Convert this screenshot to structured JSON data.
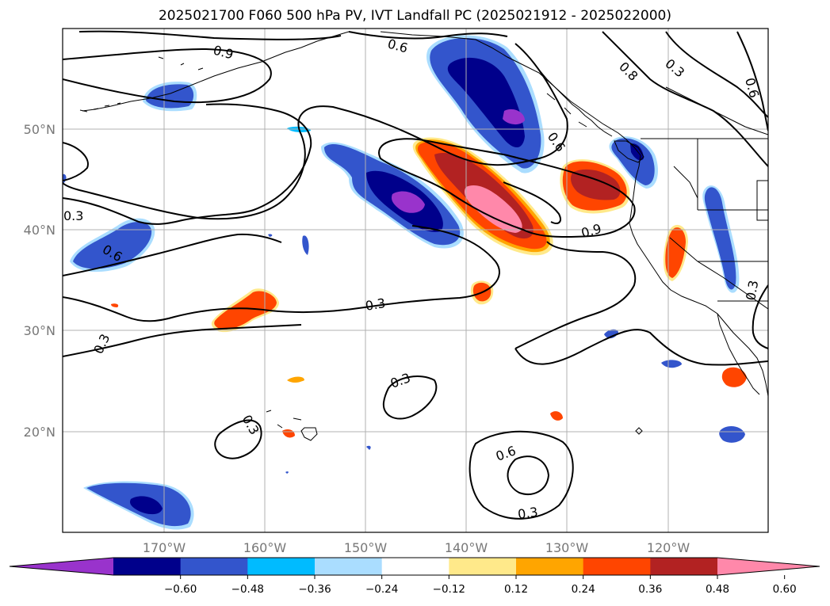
{
  "title": "2025021700 F060 500 hPa PV, IVT Landfall PC (2025021912 - 2025022000)",
  "lat_labels": [
    "50°N",
    "40°N",
    "30°N",
    "20°N"
  ],
  "lon_labels": [
    "170°W",
    "160°W",
    "150°W",
    "140°W",
    "130°W",
    "120°W"
  ],
  "contour_labels": [
    "0.9",
    "0.6",
    "0.8",
    "0.3",
    "0.6",
    "0.6",
    "0.3",
    "0.6",
    "0.9",
    "0.3",
    "0.3",
    "0.3",
    "0.3",
    "0.3",
    "0.6",
    "0.3"
  ],
  "colorbar": {
    "tick_labels": [
      "−0.60",
      "−0.48",
      "−0.36",
      "−0.24",
      "−0.12",
      "0.12",
      "0.24",
      "0.36",
      "0.48",
      "0.60"
    ],
    "colors": [
      "#9933cc",
      "#00008b",
      "#3355cc",
      "#00bbff",
      "#aaddff",
      "#ffffff",
      "#ffe98a",
      "#ffa500",
      "#ff4500",
      "#b22222",
      "#ff88aa"
    ]
  },
  "colors": {
    "purple": "#9933cc",
    "navy": "#00008b",
    "blue": "#3355cc",
    "cyan": "#00bbff",
    "lightblue": "#aaddff",
    "yellow": "#ffe98a",
    "orange": "#ffa500",
    "redorange": "#ff4500",
    "darkred": "#b22222",
    "pink": "#ff88aa"
  }
}
